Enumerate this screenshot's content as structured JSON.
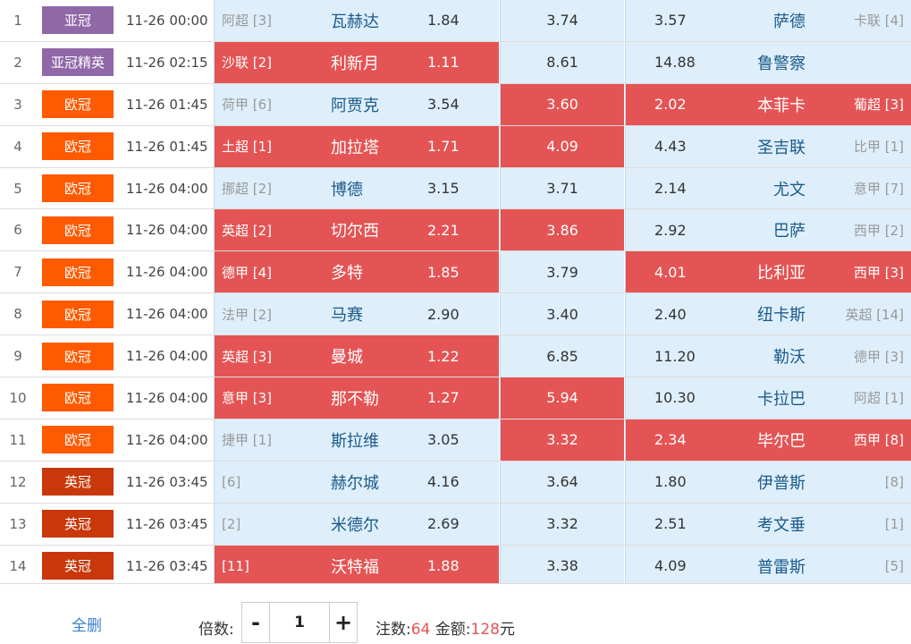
{
  "colors": {
    "asia_badge": "#9068a8",
    "euro_badge": "#ff5a00",
    "eng_badge": "#c8380a",
    "selected": "#e45454",
    "unselected": "#deeffb"
  },
  "rows": [
    {
      "num": "1",
      "league": "亚冠",
      "league_color": "#9068a8",
      "time": "11-26 00:00",
      "home_rank": "阿超 [3]",
      "home": "瓦赫达",
      "home_odds": "1.84",
      "draw_odds": "3.74",
      "away_odds": "3.57",
      "away": "萨德",
      "away_rank": "卡联 [4]",
      "sel": [
        false,
        false,
        false
      ]
    },
    {
      "num": "2",
      "league": "亚冠精英",
      "league_color": "#9068a8",
      "time": "11-26 02:15",
      "home_rank": "沙联 [2]",
      "home": "利新月",
      "home_odds": "1.11",
      "draw_odds": "8.61",
      "away_odds": "14.88",
      "away": "鲁警察",
      "away_rank": "",
      "sel": [
        true,
        false,
        false
      ]
    },
    {
      "num": "3",
      "league": "欧冠",
      "league_color": "#ff5a00",
      "time": "11-26 01:45",
      "home_rank": "荷甲 [6]",
      "home": "阿贾克",
      "home_odds": "3.54",
      "draw_odds": "3.60",
      "away_odds": "2.02",
      "away": "本菲卡",
      "away_rank": "葡超 [3]",
      "sel": [
        false,
        true,
        true
      ]
    },
    {
      "num": "4",
      "league": "欧冠",
      "league_color": "#ff5a00",
      "time": "11-26 01:45",
      "home_rank": "土超 [1]",
      "home": "加拉塔",
      "home_odds": "1.71",
      "draw_odds": "4.09",
      "away_odds": "4.43",
      "away": "圣吉联",
      "away_rank": "比甲 [1]",
      "sel": [
        true,
        true,
        false
      ]
    },
    {
      "num": "5",
      "league": "欧冠",
      "league_color": "#ff5a00",
      "time": "11-26 04:00",
      "home_rank": "挪超 [2]",
      "home": "博德",
      "home_odds": "3.15",
      "draw_odds": "3.71",
      "away_odds": "2.14",
      "away": "尤文",
      "away_rank": "意甲 [7]",
      "sel": [
        false,
        false,
        false
      ]
    },
    {
      "num": "6",
      "league": "欧冠",
      "league_color": "#ff5a00",
      "time": "11-26 04:00",
      "home_rank": "英超 [2]",
      "home": "切尔西",
      "home_odds": "2.21",
      "draw_odds": "3.86",
      "away_odds": "2.92",
      "away": "巴萨",
      "away_rank": "西甲 [2]",
      "sel": [
        true,
        true,
        false
      ]
    },
    {
      "num": "7",
      "league": "欧冠",
      "league_color": "#ff5a00",
      "time": "11-26 04:00",
      "home_rank": "德甲 [4]",
      "home": "多特",
      "home_odds": "1.85",
      "draw_odds": "3.79",
      "away_odds": "4.01",
      "away": "比利亚",
      "away_rank": "西甲 [3]",
      "sel": [
        true,
        false,
        true
      ]
    },
    {
      "num": "8",
      "league": "欧冠",
      "league_color": "#ff5a00",
      "time": "11-26 04:00",
      "home_rank": "法甲 [2]",
      "home": "马赛",
      "home_odds": "2.90",
      "draw_odds": "3.40",
      "away_odds": "2.40",
      "away": "纽卡斯",
      "away_rank": "英超 [14]",
      "sel": [
        false,
        false,
        false
      ]
    },
    {
      "num": "9",
      "league": "欧冠",
      "league_color": "#ff5a00",
      "time": "11-26 04:00",
      "home_rank": "英超 [3]",
      "home": "曼城",
      "home_odds": "1.22",
      "draw_odds": "6.85",
      "away_odds": "11.20",
      "away": "勒沃",
      "away_rank": "德甲 [3]",
      "sel": [
        true,
        false,
        false
      ]
    },
    {
      "num": "10",
      "league": "欧冠",
      "league_color": "#ff5a00",
      "time": "11-26 04:00",
      "home_rank": "意甲 [3]",
      "home": "那不勒",
      "home_odds": "1.27",
      "draw_odds": "5.94",
      "away_odds": "10.30",
      "away": "卡拉巴",
      "away_rank": "阿超 [1]",
      "sel": [
        true,
        true,
        false
      ]
    },
    {
      "num": "11",
      "league": "欧冠",
      "league_color": "#ff5a00",
      "time": "11-26 04:00",
      "home_rank": "捷甲 [1]",
      "home": "斯拉维",
      "home_odds": "3.05",
      "draw_odds": "3.32",
      "away_odds": "2.34",
      "away": "毕尔巴",
      "away_rank": "西甲 [8]",
      "sel": [
        false,
        true,
        true
      ]
    },
    {
      "num": "12",
      "league": "英冠",
      "league_color": "#c8380a",
      "time": "11-26 03:45",
      "home_rank": "[6]",
      "home": "赫尔城",
      "home_odds": "4.16",
      "draw_odds": "3.64",
      "away_odds": "1.80",
      "away": "伊普斯",
      "away_rank": "[8]",
      "sel": [
        false,
        false,
        false
      ]
    },
    {
      "num": "13",
      "league": "英冠",
      "league_color": "#c8380a",
      "time": "11-26 03:45",
      "home_rank": "[2]",
      "home": "米德尔",
      "home_odds": "2.69",
      "draw_odds": "3.32",
      "away_odds": "2.51",
      "away": "考文垂",
      "away_rank": "[1]",
      "sel": [
        false,
        false,
        false
      ]
    },
    {
      "num": "14",
      "league": "英冠",
      "league_color": "#c8380a",
      "time": "11-26 03:45",
      "home_rank": "[11]",
      "home": "沃特福",
      "home_odds": "1.88",
      "draw_odds": "3.38",
      "away_odds": "4.09",
      "away": "普雷斯",
      "away_rank": "[5]",
      "sel": [
        true,
        false,
        false
      ]
    }
  ],
  "footer": {
    "clear_all": "全删",
    "multiplier_label": "倍数:",
    "minus": "-",
    "multiplier_value": "1",
    "plus": "+",
    "bets_label": "注数:",
    "bets_value": "64",
    "amount_label": "金额:",
    "amount_value": "128",
    "currency": "元"
  }
}
